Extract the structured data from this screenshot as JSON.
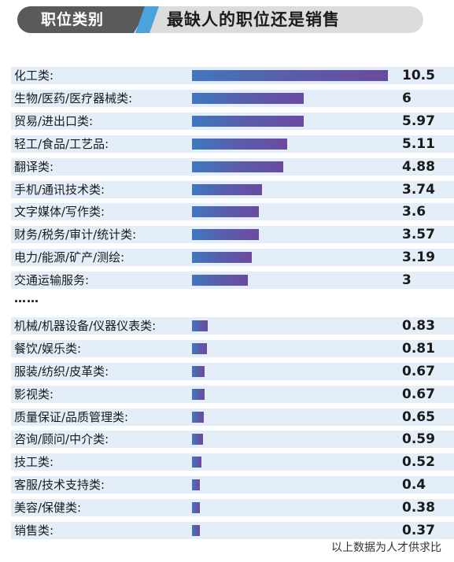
{
  "header": {
    "tag": "职位类别",
    "title": "最缺人的职位还是销售"
  },
  "chart_data": {
    "type": "bar",
    "orientation": "horizontal",
    "title": "最缺人的职位还是销售",
    "categories": [
      "化工类:",
      "生物/医药/医疗器械类:",
      "贸易/进出口类:",
      "轻工/食品/工艺品:",
      "翻译类:",
      "手机/通讯技术类:",
      "文字媒体/写作类:",
      "财务/税务/审计/统计类:",
      "电力/能源/矿产/测绘:",
      "交通运输服务:",
      "机械/机器设备/仪器仪表类:",
      "餐饮/娱乐类:",
      "服装/纺织/皮革类:",
      "影视类:",
      "质量保证/品质管理类:",
      "咨询/顾问/中介类:",
      "技工类:",
      "客服/技术支持类:",
      "美容/保健类:",
      "销售类:"
    ],
    "values": [
      10.5,
      6,
      5.97,
      5.11,
      4.88,
      3.74,
      3.6,
      3.57,
      3.19,
      3,
      0.83,
      0.81,
      0.67,
      0.67,
      0.65,
      0.59,
      0.52,
      0.4,
      0.38,
      0.37
    ],
    "value_labels": [
      "10.5",
      "6",
      "5.97",
      "5.11",
      "4.88",
      "3.74",
      "3.6",
      "3.57",
      "3.19",
      "3",
      "0.83",
      "0.81",
      "0.67",
      "0.67",
      "0.65",
      "0.59",
      "0.52",
      "0.4",
      "0.38",
      "0.37"
    ],
    "gap_after_index": 9,
    "gap_text": "……",
    "footnote": "以上数据为人才供求比",
    "colors": {
      "bar_start": "#3f78bf",
      "bar_end": "#6b4aa0",
      "row_band": "#e3eef8",
      "header_tag": "#5a5a5a",
      "header_accent": "#4aa3dd"
    }
  }
}
